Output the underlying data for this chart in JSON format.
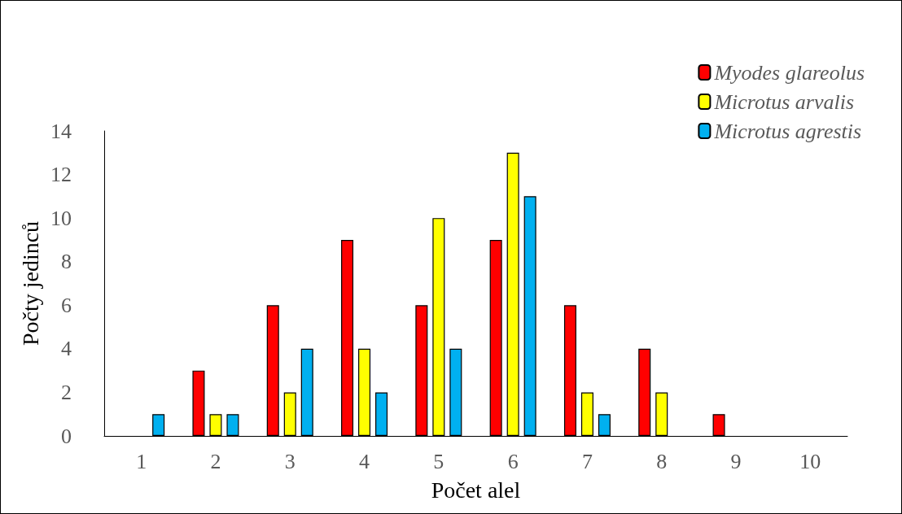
{
  "chart_data": {
    "type": "bar",
    "xlabel": "Počet alel",
    "ylabel": "Počty jedinců",
    "categories": [
      "1",
      "2",
      "3",
      "4",
      "5",
      "6",
      "7",
      "8",
      "9",
      "10"
    ],
    "series": [
      {
        "name": "Myodes glareolus",
        "color": "#ff0000",
        "values": [
          0,
          3,
          6,
          9,
          6,
          9,
          6,
          4,
          1,
          0
        ]
      },
      {
        "name": "Microtus arvalis",
        "color": "#ffff00",
        "values": [
          0,
          1,
          2,
          4,
          10,
          13,
          2,
          2,
          0,
          0
        ]
      },
      {
        "name": "Microtus agrestis",
        "color": "#00b0f0",
        "values": [
          1,
          1,
          4,
          2,
          4,
          11,
          1,
          0,
          0,
          0
        ]
      }
    ],
    "ylim": [
      0,
      14
    ],
    "yticks": [
      0,
      2,
      4,
      6,
      8,
      10,
      12,
      14
    ],
    "grid": false,
    "legend": "top right"
  }
}
